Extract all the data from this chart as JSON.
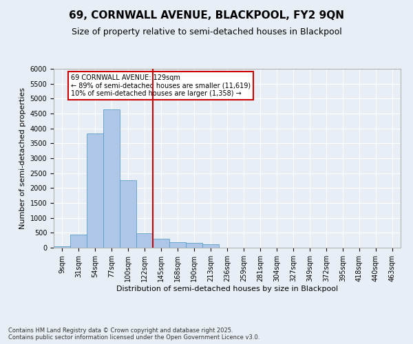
{
  "title_line1": "69, CORNWALL AVENUE, BLACKPOOL, FY2 9QN",
  "title_line2": "Size of property relative to semi-detached houses in Blackpool",
  "xlabel": "Distribution of semi-detached houses by size in Blackpool",
  "ylabel": "Number of semi-detached properties",
  "categories": [
    "9sqm",
    "31sqm",
    "54sqm",
    "77sqm",
    "100sqm",
    "122sqm",
    "145sqm",
    "168sqm",
    "190sqm",
    "213sqm",
    "236sqm",
    "259sqm",
    "281sqm",
    "304sqm",
    "327sqm",
    "349sqm",
    "372sqm",
    "395sqm",
    "418sqm",
    "440sqm",
    "463sqm"
  ],
  "bar_heights": [
    50,
    430,
    3820,
    4640,
    2270,
    490,
    290,
    190,
    160,
    120,
    0,
    0,
    0,
    0,
    0,
    0,
    0,
    0,
    0,
    0,
    0
  ],
  "bar_color": "#aec6e8",
  "bar_edge_color": "#5a9fc8",
  "vline_x_index": 5.5,
  "vline_color": "#cc0000",
  "annotation_text": "69 CORNWALL AVENUE: 129sqm\n← 89% of semi-detached houses are smaller (11,619)\n10% of semi-detached houses are larger (1,358) →",
  "annotation_box_color": "#cc0000",
  "ylim": [
    0,
    6000
  ],
  "yticks": [
    0,
    500,
    1000,
    1500,
    2000,
    2500,
    3000,
    3500,
    4000,
    4500,
    5000,
    5500,
    6000
  ],
  "background_color": "#e8eef5",
  "plot_bg_color": "#e8eef5",
  "footer_text": "Contains HM Land Registry data © Crown copyright and database right 2025.\nContains public sector information licensed under the Open Government Licence v3.0.",
  "title_fontsize": 11,
  "subtitle_fontsize": 9,
  "tick_fontsize": 7,
  "label_fontsize": 8,
  "ylabel_fontsize": 8
}
